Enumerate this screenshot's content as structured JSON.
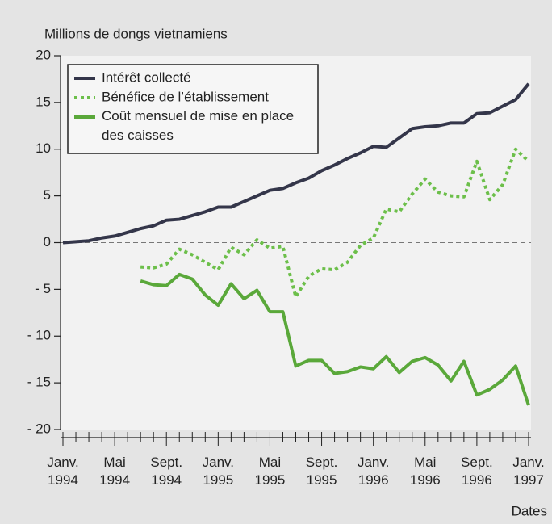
{
  "chart_data": {
    "type": "line",
    "y_label": "Millions de dongs vietnamiens",
    "x_label": "Dates",
    "categories": [
      "Janv. 1994",
      null,
      null,
      null,
      "Mai 1994",
      null,
      null,
      null,
      "Sept. 1994",
      null,
      null,
      null,
      "Janv. 1995",
      null,
      null,
      null,
      "Mai 1995",
      null,
      null,
      null,
      "Sept. 1995",
      null,
      null,
      null,
      "Janv. 1996",
      null,
      null,
      null,
      "Mai 1996",
      null,
      null,
      null,
      "Sept. 1996",
      null,
      null,
      null,
      "Janv. 1997"
    ],
    "series": [
      {
        "name": "Intérêt collecté",
        "color": "#34364a",
        "style": "solid",
        "values": [
          0,
          0.1,
          0.2,
          0.5,
          0.7,
          1.1,
          1.5,
          1.8,
          2.4,
          2.5,
          2.9,
          3.3,
          3.8,
          3.8,
          4.4,
          5.0,
          5.6,
          5.8,
          6.4,
          6.9,
          7.7,
          8.3,
          9.0,
          9.6,
          10.3,
          10.2,
          11.2,
          12.2,
          12.4,
          12.5,
          12.8,
          12.8,
          13.8,
          13.9,
          14.6,
          15.3,
          17.0
        ]
      },
      {
        "name": "Bénéfice de l’établissement",
        "color": "#6cbf4a",
        "style": "dotted",
        "values": [
          null,
          null,
          null,
          null,
          null,
          null,
          -2.6,
          -2.7,
          -2.3,
          -0.7,
          -1.3,
          -2.1,
          -2.9,
          -0.5,
          -1.3,
          0.3,
          -0.6,
          -0.4,
          -5.8,
          -3.6,
          -2.8,
          -2.9,
          -2.1,
          -0.3,
          0.5,
          3.6,
          3.3,
          5.2,
          6.8,
          5.4,
          5.0,
          4.9,
          8.7,
          4.6,
          6.2,
          10.0,
          8.7
        ]
      },
      {
        "name": "Coût mensuel de mise en place des caisses",
        "color": "#5aa83a",
        "style": "solid",
        "values": [
          null,
          null,
          null,
          null,
          null,
          null,
          -4.1,
          -4.5,
          -4.6,
          -3.4,
          -3.9,
          -5.6,
          -6.7,
          -4.4,
          -6.0,
          -5.1,
          -7.4,
          -7.4,
          -13.2,
          -12.6,
          -12.6,
          -14.0,
          -13.8,
          -13.3,
          -13.5,
          -12.2,
          -13.9,
          -12.7,
          -12.3,
          -13.1,
          -14.8,
          -12.7,
          -16.3,
          -15.7,
          -14.7,
          -13.2,
          -17.4
        ]
      }
    ],
    "ylim": [
      -20,
      20
    ],
    "yticks": [
      {
        "value": -20,
        "label": "- 20"
      },
      {
        "value": -15,
        "label": "- 15"
      },
      {
        "value": -10,
        "label": "- 10"
      },
      {
        "value": -5,
        "label": "- 5"
      },
      0,
      5,
      10,
      15,
      20
    ],
    "zero_line": true,
    "legend": "upper left"
  }
}
